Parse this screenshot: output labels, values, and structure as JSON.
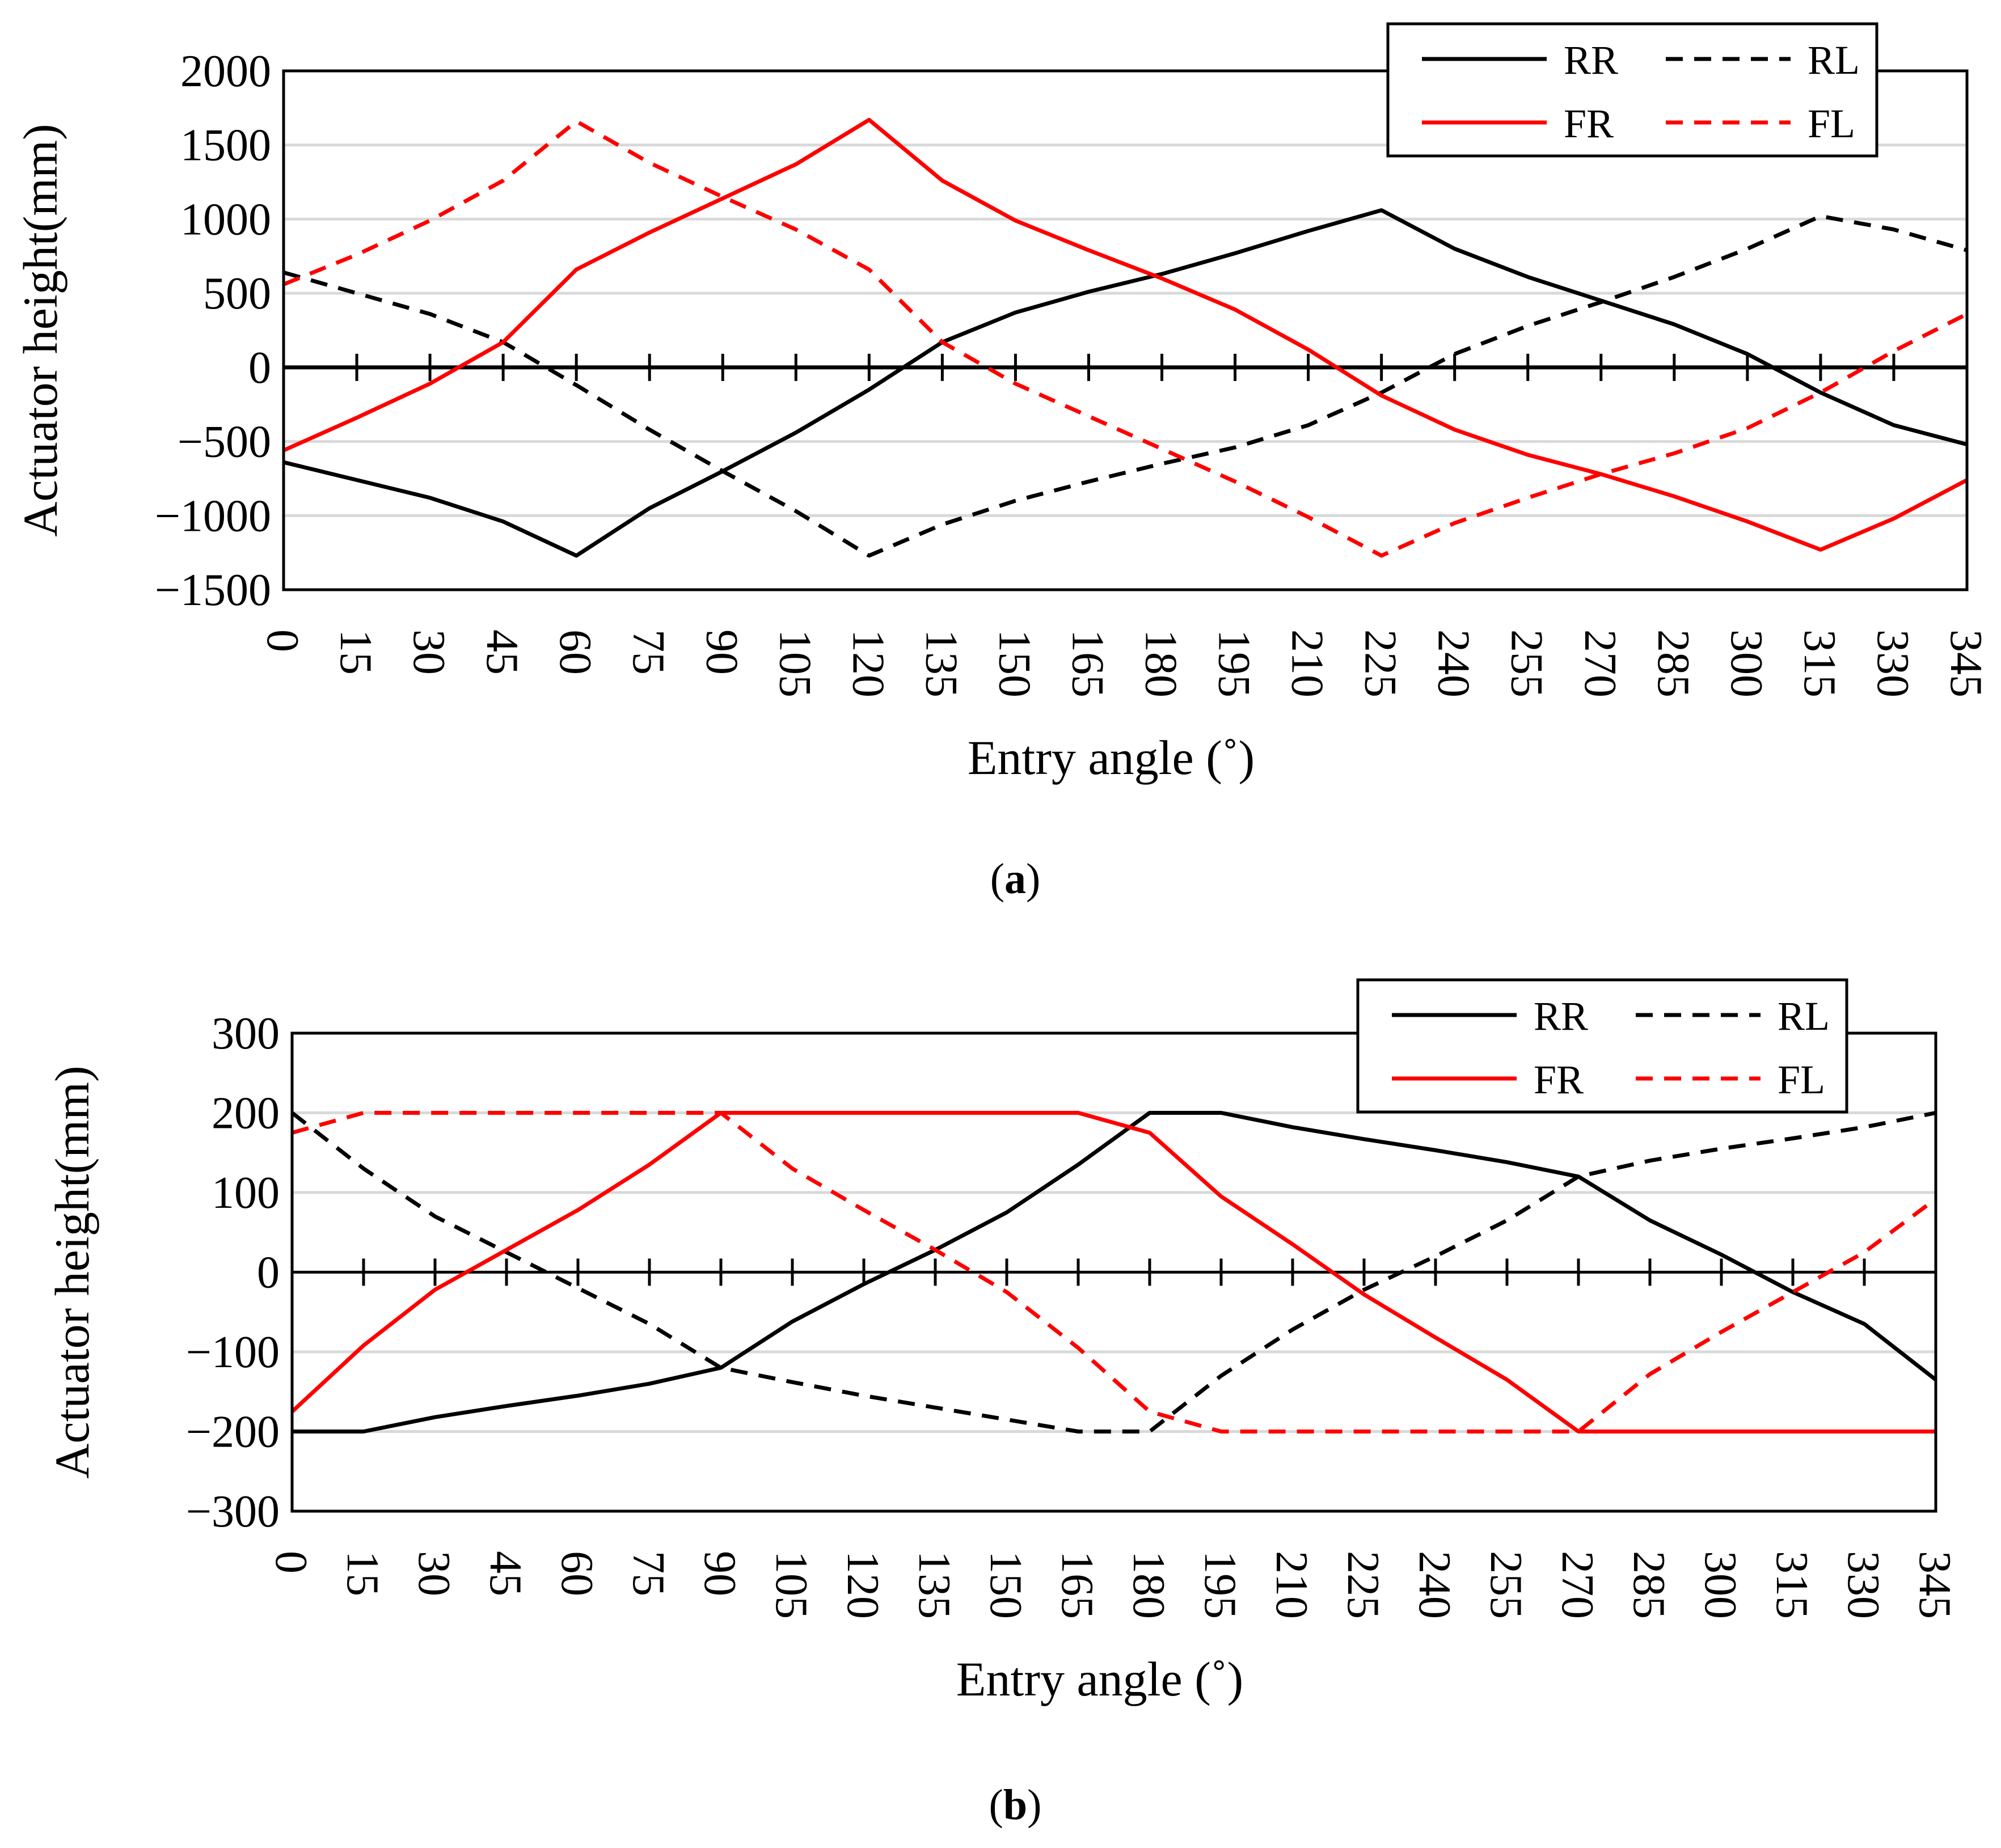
{
  "colors": {
    "black": "#000000",
    "red": "#ff0000",
    "grid": "#d9d9d9"
  },
  "chart_data": [
    {
      "type": "line",
      "panel_label": "(a)",
      "panel_letter": "a",
      "xlabel": "Entry angle (˚)",
      "ylabel": "Actuator height(mm)",
      "ylim": [
        -1500,
        2000
      ],
      "yticks": [
        -1500,
        -1000,
        -500,
        0,
        500,
        1000,
        1500,
        2000
      ],
      "ytick_labels": [
        "−1500",
        "−1000",
        "−500",
        "0",
        "500",
        "1000",
        "1500",
        "2000"
      ],
      "grid": true,
      "legend_position": "top-right",
      "categories": [
        "0",
        "15",
        "30",
        "45",
        "60",
        "75",
        "90",
        "105",
        "120",
        "135",
        "150",
        "165",
        "180",
        "195",
        "210",
        "225",
        "240",
        "255",
        "270",
        "285",
        "300",
        "315",
        "330",
        "345"
      ],
      "x": [
        0,
        15,
        30,
        45,
        60,
        75,
        90,
        105,
        120,
        135,
        150,
        165,
        180,
        195,
        210,
        225,
        240,
        255,
        270,
        285,
        300,
        315,
        330,
        345
      ],
      "series": [
        {
          "name": "RR",
          "color": "black",
          "dash": false,
          "values": [
            -640,
            -760,
            -880,
            -1040,
            -1270,
            -950,
            -700,
            -440,
            -150,
            170,
            370,
            510,
            630,
            770,
            920,
            1060,
            800,
            610,
            450,
            290,
            90,
            -170,
            -390,
            -520
          ]
        },
        {
          "name": "RL",
          "color": "black",
          "dash": true,
          "values": [
            640,
            500,
            360,
            170,
            -120,
            -420,
            -700,
            -970,
            -1270,
            -1060,
            -900,
            -770,
            -650,
            -540,
            -390,
            -170,
            90,
            280,
            440,
            610,
            800,
            1020,
            930,
            790
          ]
        },
        {
          "name": "FR",
          "color": "red",
          "dash": false,
          "values": [
            -560,
            -340,
            -110,
            170,
            660,
            910,
            1140,
            1370,
            1670,
            1260,
            990,
            790,
            600,
            390,
            120,
            -190,
            -420,
            -590,
            -720,
            -870,
            -1040,
            -1230,
            -1020,
            -760
          ]
        },
        {
          "name": "FL",
          "color": "red",
          "dash": true,
          "values": [
            560,
            760,
            990,
            1260,
            1660,
            1380,
            1150,
            930,
            660,
            170,
            -110,
            -330,
            -550,
            -770,
            -1010,
            -1270,
            -1050,
            -880,
            -720,
            -580,
            -410,
            -170,
            110,
            360
          ]
        }
      ]
    },
    {
      "type": "line",
      "panel_label": "(b)",
      "panel_letter": "b",
      "xlabel": "Entry angle (˚)",
      "ylabel": "Actuator height(mm)",
      "ylim": [
        -300,
        300
      ],
      "yticks": [
        -300,
        -200,
        -100,
        0,
        100,
        200,
        300
      ],
      "ytick_labels": [
        "−300",
        "−200",
        "−100",
        "0",
        "100",
        "200",
        "300"
      ],
      "grid": true,
      "legend_position": "top-right",
      "categories": [
        "0",
        "15",
        "30",
        "45",
        "60",
        "75",
        "90",
        "105",
        "120",
        "135",
        "150",
        "165",
        "180",
        "195",
        "210",
        "225",
        "240",
        "255",
        "270",
        "285",
        "300",
        "315",
        "330",
        "345"
      ],
      "x": [
        0,
        15,
        30,
        45,
        60,
        75,
        90,
        105,
        120,
        135,
        150,
        165,
        180,
        195,
        210,
        225,
        240,
        255,
        270,
        285,
        300,
        315,
        330,
        345
      ],
      "series": [
        {
          "name": "RR",
          "color": "black",
          "dash": false,
          "values": [
            -200,
            -200,
            -182,
            -168,
            -155,
            -140,
            -120,
            -62,
            -15,
            28,
            75,
            135,
            200,
            200,
            182,
            167,
            153,
            138,
            120,
            65,
            22,
            -25,
            -65,
            -135
          ]
        },
        {
          "name": "RL",
          "color": "black",
          "dash": true,
          "values": [
            200,
            130,
            70,
            25,
            -20,
            -65,
            -120,
            -138,
            -155,
            -170,
            -185,
            -200,
            -200,
            -130,
            -72,
            -22,
            20,
            65,
            120,
            140,
            155,
            168,
            182,
            200
          ]
        },
        {
          "name": "FR",
          "color": "red",
          "dash": false,
          "values": [
            -175,
            -92,
            -22,
            28,
            78,
            135,
            200,
            200,
            200,
            200,
            200,
            200,
            175,
            95,
            35,
            -28,
            -82,
            -135,
            -200,
            -200,
            -200,
            -200,
            -200,
            -200
          ]
        },
        {
          "name": "FL",
          "color": "red",
          "dash": true,
          "values": [
            175,
            200,
            200,
            200,
            200,
            200,
            200,
            130,
            78,
            28,
            -25,
            -95,
            -175,
            -200,
            -200,
            -200,
            -200,
            -200,
            -200,
            -128,
            -75,
            -25,
            25,
            92
          ]
        }
      ]
    }
  ]
}
